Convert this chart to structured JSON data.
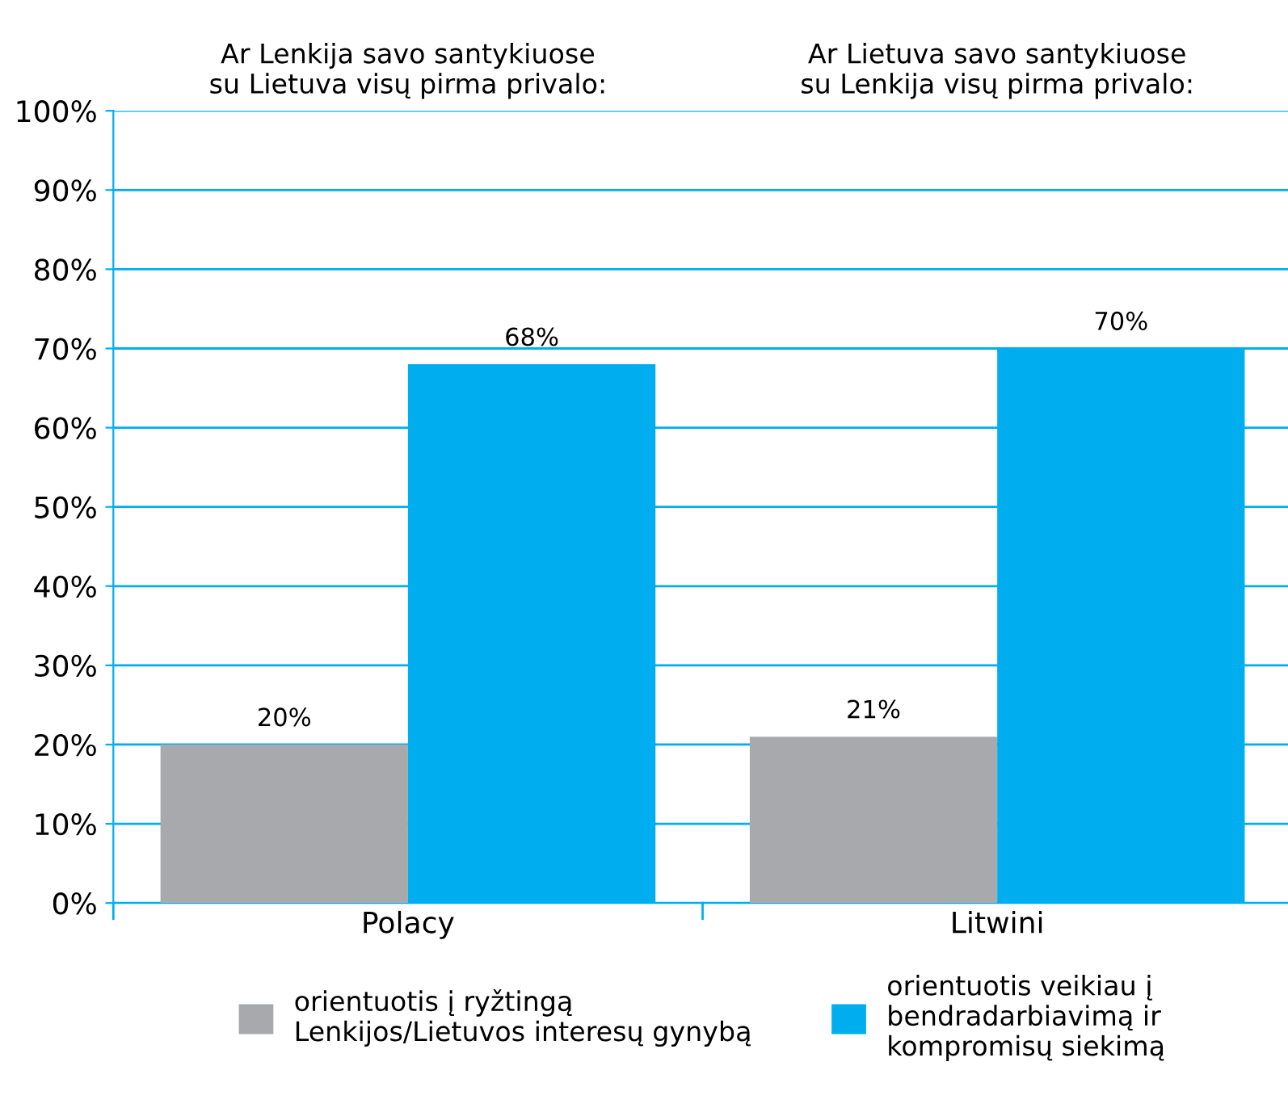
{
  "chart_data": {
    "type": "bar",
    "categories": [
      "Polacy",
      "Litwini"
    ],
    "series": [
      {
        "name": "orientuotis į ryžtingą\nLenkijos/Lietuvos interesų gynybą",
        "color": "#a7a9ac",
        "values": [
          20,
          21
        ]
      },
      {
        "name": "orientuotis veikiau į\nbendradarbiavimą ir\nkompromisų siekimą",
        "color": "#00aeef",
        "values": [
          68,
          70
        ]
      }
    ],
    "annotations": [
      "Ar Lenkija savo santykiuose\nsu Lietuva visų pirma privalo:",
      "Ar Lietuva savo santykiuose\nsu Lenkija visų pirma privalo:"
    ],
    "ylim": [
      0,
      100
    ],
    "yticks": [
      {
        "value": 0,
        "label": "0%"
      },
      {
        "value": 10,
        "label": "10%"
      },
      {
        "value": 20,
        "label": "20%"
      },
      {
        "value": 30,
        "label": "30%"
      },
      {
        "value": 40,
        "label": "40%"
      },
      {
        "value": 50,
        "label": "50%"
      },
      {
        "value": 60,
        "label": "60%"
      },
      {
        "value": 70,
        "label": "70%"
      },
      {
        "value": 80,
        "label": "80%"
      },
      {
        "value": 90,
        "label": "90%"
      },
      {
        "value": 100,
        "label": "100%"
      }
    ],
    "value_labels": [
      [
        "20%",
        "21%"
      ],
      [
        "68%",
        "70%"
      ]
    ],
    "grid": "y",
    "legend": "bottom"
  }
}
